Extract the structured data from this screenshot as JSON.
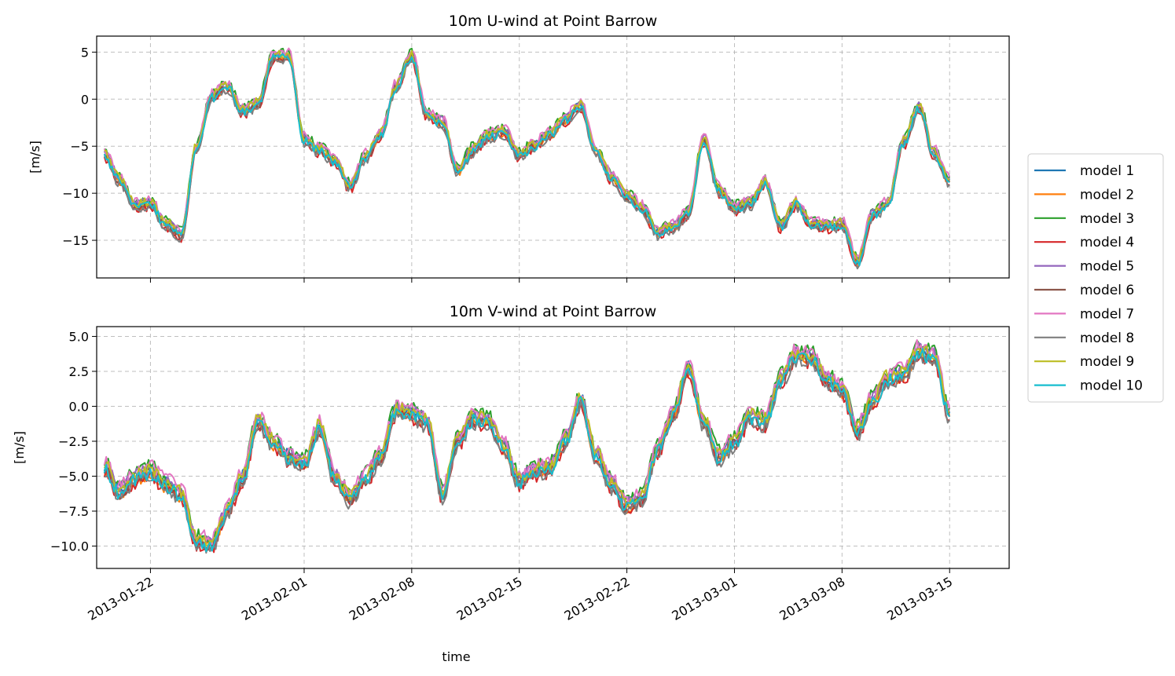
{
  "chart_data": [
    {
      "type": "line",
      "title": "10m U-wind at Point Barrow",
      "ylabel": "[m/s]",
      "xlabel": "",
      "xlim": [
        "2013-01-18T12:00",
        "2013-03-18T21:00"
      ],
      "ylim": [
        -19.0,
        6.7
      ],
      "yticks": [
        5,
        0,
        -5,
        -10,
        -15
      ],
      "ytick_labels": [
        "5",
        "0",
        "−5",
        "−10",
        "−15"
      ],
      "xticks": [
        "2013-01-22",
        "2013-02-01",
        "2013-02-08",
        "2013-02-15",
        "2013-02-22",
        "2013-03-01",
        "2013-03-08",
        "2013-03-15"
      ],
      "xtick_labels_shown": false,
      "grid": true,
      "x": [
        "2013-01-19",
        "2013-01-20",
        "2013-01-21",
        "2013-01-22",
        "2013-01-23",
        "2013-01-24",
        "2013-01-25",
        "2013-01-26",
        "2013-01-27",
        "2013-01-28",
        "2013-01-29",
        "2013-01-30",
        "2013-01-31",
        "2013-02-01",
        "2013-02-02",
        "2013-02-03",
        "2013-02-04",
        "2013-02-05",
        "2013-02-06",
        "2013-02-07",
        "2013-02-08",
        "2013-02-09",
        "2013-02-10",
        "2013-02-11",
        "2013-02-12",
        "2013-02-13",
        "2013-02-14",
        "2013-02-15",
        "2013-02-16",
        "2013-02-17",
        "2013-02-18",
        "2013-02-19",
        "2013-02-20",
        "2013-02-21",
        "2013-02-22",
        "2013-02-23",
        "2013-02-24",
        "2013-02-25",
        "2013-02-26",
        "2013-02-27",
        "2013-02-28",
        "2013-03-01",
        "2013-03-02",
        "2013-03-03",
        "2013-03-04",
        "2013-03-05",
        "2013-03-06",
        "2013-03-07",
        "2013-03-08",
        "2013-03-09",
        "2013-03-10",
        "2013-03-11",
        "2013-03-12",
        "2013-03-13",
        "2013-03-14",
        "2013-03-15"
      ],
      "series": [
        {
          "name": "model 1",
          "values": [
            -5.8,
            -8.5,
            -11.2,
            -11.0,
            -13.2,
            -14.3,
            -5.0,
            0.4,
            1.5,
            -1.2,
            -0.4,
            4.6,
            4.6,
            -4.2,
            -5.3,
            -6.4,
            -9.2,
            -6.0,
            -3.6,
            1.5,
            4.6,
            -1.6,
            -2.4,
            -7.5,
            -5.3,
            -3.8,
            -3.4,
            -5.9,
            -4.8,
            -3.6,
            -2.0,
            -0.6,
            -5.5,
            -8.2,
            -10.2,
            -11.5,
            -14.1,
            -13.5,
            -12.0,
            -4.2,
            -9.6,
            -11.5,
            -11.0,
            -8.8,
            -13.4,
            -11.0,
            -13.2,
            -13.4,
            -13.2,
            -17.2,
            -12.2,
            -11.0,
            -4.5,
            -0.8,
            -5.6,
            -8.6
          ]
        }
      ]
    },
    {
      "type": "line",
      "title": "10m V-wind at Point Barrow",
      "ylabel": "[m/s]",
      "xlabel": "time",
      "xlim": [
        "2013-01-18T12:00",
        "2013-03-18T21:00"
      ],
      "ylim": [
        -11.6,
        5.7
      ],
      "yticks": [
        5.0,
        2.5,
        0.0,
        -2.5,
        -5.0,
        -7.5,
        -10.0
      ],
      "ytick_labels": [
        "5.0",
        "2.5",
        "0.0",
        "−2.5",
        "−5.0",
        "−7.5",
        "−10.0"
      ],
      "xticks": [
        "2013-01-22",
        "2013-02-01",
        "2013-02-08",
        "2013-02-15",
        "2013-02-22",
        "2013-03-01",
        "2013-03-08",
        "2013-03-15"
      ],
      "xtick_labels": [
        "2013-01-22",
        "2013-02-01",
        "2013-02-08",
        "2013-02-15",
        "2013-02-22",
        "2013-03-01",
        "2013-03-08",
        "2013-03-15"
      ],
      "grid": true,
      "x": [
        "2013-01-19",
        "2013-01-20",
        "2013-01-21",
        "2013-01-22",
        "2013-01-23",
        "2013-01-24",
        "2013-01-25",
        "2013-01-26",
        "2013-01-27",
        "2013-01-28",
        "2013-01-29",
        "2013-01-30",
        "2013-01-31",
        "2013-02-01",
        "2013-02-02",
        "2013-02-03",
        "2013-02-04",
        "2013-02-05",
        "2013-02-06",
        "2013-02-07",
        "2013-02-08",
        "2013-02-09",
        "2013-02-10",
        "2013-02-11",
        "2013-02-12",
        "2013-02-13",
        "2013-02-14",
        "2013-02-15",
        "2013-02-16",
        "2013-02-17",
        "2013-02-18",
        "2013-02-19",
        "2013-02-20",
        "2013-02-21",
        "2013-02-22",
        "2013-02-23",
        "2013-02-24",
        "2013-02-25",
        "2013-02-26",
        "2013-02-27",
        "2013-02-28",
        "2013-03-01",
        "2013-03-02",
        "2013-03-03",
        "2013-03-04",
        "2013-03-05",
        "2013-03-06",
        "2013-03-07",
        "2013-03-08",
        "2013-03-09",
        "2013-03-10",
        "2013-03-11",
        "2013-03-12",
        "2013-03-13",
        "2013-03-14",
        "2013-03-15"
      ],
      "series": [
        {
          "name": "model 1",
          "values": [
            -4.2,
            -6.0,
            -5.0,
            -4.6,
            -5.5,
            -6.2,
            -9.5,
            -9.8,
            -7.4,
            -5.0,
            -1.0,
            -2.5,
            -3.5,
            -4.0,
            -1.4,
            -5.0,
            -6.5,
            -5.0,
            -3.5,
            -0.2,
            -0.5,
            -1.0,
            -6.2,
            -2.4,
            -0.8,
            -1.0,
            -2.8,
            -5.2,
            -4.6,
            -4.3,
            -2.4,
            0.5,
            -3.4,
            -5.5,
            -7.0,
            -6.5,
            -3.0,
            -0.5,
            2.8,
            -1.0,
            -3.5,
            -2.5,
            -0.7,
            -1.0,
            2.0,
            3.7,
            3.6,
            2.0,
            1.2,
            -1.6,
            0.5,
            2.1,
            2.4,
            4.0,
            3.6,
            -0.5
          ]
        }
      ]
    }
  ],
  "legend": {
    "placement": "right",
    "entries": [
      {
        "name": "model 1",
        "color": "#1f77b4"
      },
      {
        "name": "model 2",
        "color": "#ff7f0e"
      },
      {
        "name": "model 3",
        "color": "#2ca02c"
      },
      {
        "name": "model 4",
        "color": "#d62728"
      },
      {
        "name": "model 5",
        "color": "#9467bd"
      },
      {
        "name": "model 6",
        "color": "#8c564b"
      },
      {
        "name": "model 7",
        "color": "#e377c2"
      },
      {
        "name": "model 8",
        "color": "#7f7f7f"
      },
      {
        "name": "model 9",
        "color": "#bcbd22"
      },
      {
        "name": "model 10",
        "color": "#17becf"
      }
    ]
  }
}
